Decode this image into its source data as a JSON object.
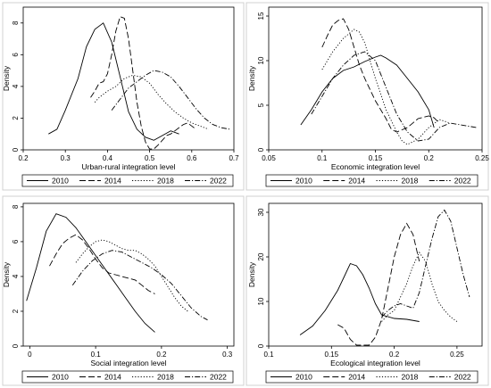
{
  "chart_data": [
    {
      "type": "line",
      "xlabel": "Urban-rural integration level",
      "ylabel": "Density",
      "xlim": [
        0.2,
        0.7
      ],
      "ylim": [
        0,
        9
      ],
      "xticks": [
        "0.2",
        "0.3",
        "0.4",
        "0.5",
        "0.6",
        "0.7"
      ],
      "yticks": [
        "0",
        "2",
        "4",
        "6",
        "8"
      ],
      "legend_position": "bottom",
      "series": [
        {
          "name": "2010",
          "style": "solid",
          "x": [
            0.26,
            0.28,
            0.3,
            0.33,
            0.35,
            0.37,
            0.39,
            0.41,
            0.43,
            0.45,
            0.47,
            0.49,
            0.51,
            0.53,
            0.55,
            0.57
          ],
          "y": [
            1.0,
            1.3,
            2.5,
            4.5,
            6.5,
            7.6,
            8.0,
            6.8,
            4.6,
            2.4,
            1.3,
            0.8,
            0.6,
            0.9,
            1.2,
            1.0
          ]
        },
        {
          "name": "2014",
          "style": "dash",
          "x": [
            0.36,
            0.37,
            0.38,
            0.39,
            0.4,
            0.41,
            0.42,
            0.43,
            0.44,
            0.45,
            0.46,
            0.47,
            0.48,
            0.49,
            0.5,
            0.51,
            0.52,
            0.53,
            0.54,
            0.55,
            0.56,
            0.57,
            0.58,
            0.59,
            0.6,
            0.61
          ],
          "y": [
            3.3,
            3.7,
            4.2,
            4.3,
            4.8,
            6.0,
            7.5,
            8.4,
            8.3,
            7.0,
            5.0,
            3.0,
            1.5,
            0.5,
            0.05,
            0.05,
            0.3,
            0.6,
            0.9,
            1.0,
            1.2,
            1.4,
            1.6,
            1.7,
            1.5,
            1.3
          ]
        },
        {
          "name": "2018",
          "style": "dot",
          "x": [
            0.37,
            0.38,
            0.4,
            0.42,
            0.44,
            0.46,
            0.48,
            0.5,
            0.52,
            0.54,
            0.56,
            0.58,
            0.6,
            0.62,
            0.64
          ],
          "y": [
            3.0,
            3.3,
            3.7,
            4.0,
            4.5,
            4.7,
            4.6,
            4.2,
            3.5,
            2.9,
            2.4,
            2.0,
            1.7,
            1.5,
            1.3
          ]
        },
        {
          "name": "2022",
          "style": "dashdot",
          "x": [
            0.41,
            0.43,
            0.45,
            0.47,
            0.49,
            0.51,
            0.53,
            0.55,
            0.57,
            0.59,
            0.61,
            0.63,
            0.65,
            0.67,
            0.69
          ],
          "y": [
            2.5,
            3.2,
            3.9,
            4.3,
            4.7,
            5.0,
            4.9,
            4.6,
            4.0,
            3.3,
            2.6,
            2.0,
            1.6,
            1.4,
            1.3
          ]
        }
      ]
    },
    {
      "type": "line",
      "xlabel": "Economic integration level",
      "ylabel": "Density",
      "xlim": [
        0.05,
        0.25
      ],
      "ylim": [
        0,
        16
      ],
      "xticks": [
        "0.05",
        "0.1",
        "0.15",
        "0.2",
        "0.25"
      ],
      "yticks": [
        "0",
        "5",
        "10",
        "15"
      ],
      "legend_position": "bottom",
      "series": [
        {
          "name": "2010",
          "style": "solid",
          "x": [
            0.08,
            0.09,
            0.1,
            0.11,
            0.12,
            0.13,
            0.14,
            0.15,
            0.155,
            0.16,
            0.17,
            0.18,
            0.19,
            0.2,
            0.205
          ],
          "y": [
            2.8,
            4.5,
            6.5,
            8.0,
            8.9,
            9.3,
            9.9,
            10.4,
            10.6,
            10.3,
            9.5,
            8.0,
            6.5,
            4.5,
            2.5
          ]
        },
        {
          "name": "2014",
          "style": "dash",
          "x": [
            0.1,
            0.105,
            0.11,
            0.115,
            0.12,
            0.125,
            0.13,
            0.135,
            0.14,
            0.15,
            0.16,
            0.165,
            0.17,
            0.18,
            0.19,
            0.2,
            0.205,
            0.21
          ],
          "y": [
            11.5,
            12.8,
            14.0,
            14.5,
            14.7,
            13.5,
            11.5,
            9.5,
            8.0,
            5.5,
            3.5,
            2.3,
            2.0,
            2.5,
            3.5,
            3.8,
            3.6,
            3.0
          ]
        },
        {
          "name": "2018",
          "style": "dot",
          "x": [
            0.1,
            0.11,
            0.12,
            0.13,
            0.135,
            0.14,
            0.15,
            0.16,
            0.17,
            0.175,
            0.18,
            0.19,
            0.2,
            0.21,
            0.22
          ],
          "y": [
            9.0,
            11.0,
            12.5,
            13.5,
            13.2,
            12.0,
            8.0,
            4.5,
            2.0,
            1.0,
            0.6,
            1.2,
            2.5,
            3.4,
            3.0
          ]
        },
        {
          "name": "2022",
          "style": "dashdot",
          "x": [
            0.09,
            0.1,
            0.11,
            0.12,
            0.13,
            0.14,
            0.15,
            0.16,
            0.17,
            0.18,
            0.19,
            0.2,
            0.21,
            0.22,
            0.23,
            0.24,
            0.245
          ],
          "y": [
            4.0,
            6.0,
            8.0,
            9.5,
            10.6,
            11.0,
            10.0,
            7.0,
            4.0,
            2.0,
            1.0,
            1.2,
            2.5,
            3.0,
            2.8,
            2.6,
            2.5
          ]
        }
      ]
    },
    {
      "type": "line",
      "xlabel": "Social integration level",
      "ylabel": "Density",
      "xlim": [
        -0.01,
        0.31
      ],
      "ylim": [
        0,
        8.2
      ],
      "xticks": [
        "0",
        "0.1",
        "0.2",
        "0.3"
      ],
      "yticks": [
        "0",
        "2",
        "4",
        "6",
        "8"
      ],
      "legend_position": "bottom",
      "series": [
        {
          "name": "2010",
          "style": "solid",
          "x": [
            -0.005,
            0.01,
            0.025,
            0.04,
            0.055,
            0.07,
            0.085,
            0.1,
            0.115,
            0.13,
            0.145,
            0.16,
            0.175,
            0.19
          ],
          "y": [
            2.6,
            4.5,
            6.6,
            7.6,
            7.4,
            6.8,
            6.0,
            5.2,
            4.4,
            3.6,
            2.8,
            2.0,
            1.3,
            0.8
          ]
        },
        {
          "name": "2014",
          "style": "dash",
          "x": [
            0.03,
            0.04,
            0.05,
            0.06,
            0.07,
            0.08,
            0.09,
            0.1,
            0.11,
            0.12,
            0.13,
            0.14,
            0.15,
            0.16,
            0.17,
            0.18,
            0.19
          ],
          "y": [
            4.6,
            5.3,
            5.9,
            6.2,
            6.4,
            6.1,
            5.6,
            5.0,
            4.5,
            4.2,
            4.1,
            4.0,
            3.9,
            3.8,
            3.5,
            3.2,
            3.0
          ]
        },
        {
          "name": "2018",
          "style": "dot",
          "x": [
            0.07,
            0.08,
            0.09,
            0.1,
            0.11,
            0.12,
            0.13,
            0.14,
            0.15,
            0.16,
            0.17,
            0.18,
            0.19,
            0.2,
            0.21,
            0.22,
            0.23,
            0.24
          ],
          "y": [
            4.8,
            5.3,
            5.7,
            6.0,
            6.1,
            6.0,
            5.8,
            5.6,
            5.5,
            5.5,
            5.3,
            5.0,
            4.6,
            4.0,
            3.4,
            2.8,
            2.3,
            2.0
          ]
        },
        {
          "name": "2022",
          "style": "dashdot",
          "x": [
            0.065,
            0.08,
            0.095,
            0.11,
            0.125,
            0.14,
            0.155,
            0.17,
            0.185,
            0.2,
            0.215,
            0.23,
            0.245,
            0.26,
            0.27
          ],
          "y": [
            3.5,
            4.3,
            4.9,
            5.3,
            5.5,
            5.4,
            5.1,
            4.8,
            4.5,
            4.1,
            3.6,
            2.9,
            2.2,
            1.7,
            1.5
          ]
        }
      ]
    },
    {
      "type": "line",
      "xlabel": "Ecological integration level",
      "ylabel": "Density",
      "xlim": [
        0.1,
        0.27
      ],
      "ylim": [
        0,
        32
      ],
      "xticks": [
        "0.1",
        "0.15",
        "0.2",
        "0.25"
      ],
      "yticks": [
        "0",
        "10",
        "20",
        "30"
      ],
      "legend_position": "bottom",
      "series": [
        {
          "name": "2010",
          "style": "solid",
          "x": [
            0.125,
            0.135,
            0.145,
            0.155,
            0.16,
            0.165,
            0.17,
            0.175,
            0.18,
            0.185,
            0.19,
            0.2,
            0.21,
            0.22
          ],
          "y": [
            2.5,
            4.5,
            8.0,
            12.5,
            15.5,
            18.5,
            18.0,
            16.0,
            13.0,
            9.5,
            7.0,
            6.2,
            6.0,
            5.5
          ]
        },
        {
          "name": "2014",
          "style": "dash",
          "x": [
            0.155,
            0.16,
            0.165,
            0.17,
            0.175,
            0.18,
            0.185,
            0.19,
            0.195,
            0.2,
            0.205,
            0.21,
            0.215,
            0.22
          ],
          "y": [
            4.8,
            4.0,
            1.5,
            0.2,
            0.2,
            0.2,
            2.0,
            6.0,
            13.0,
            20.0,
            25.0,
            27.5,
            25.0,
            19.0
          ]
        },
        {
          "name": "2018",
          "style": "dot",
          "x": [
            0.19,
            0.195,
            0.2,
            0.205,
            0.21,
            0.215,
            0.22,
            0.225,
            0.23,
            0.235,
            0.24,
            0.245,
            0.25
          ],
          "y": [
            5.5,
            7.0,
            8.0,
            11.0,
            14.0,
            18.0,
            21.0,
            19.0,
            14.0,
            10.0,
            8.0,
            6.5,
            5.5
          ]
        },
        {
          "name": "2022",
          "style": "dashdot",
          "x": [
            0.19,
            0.195,
            0.2,
            0.205,
            0.21,
            0.215,
            0.22,
            0.225,
            0.23,
            0.235,
            0.24,
            0.245,
            0.25,
            0.255,
            0.26
          ],
          "y": [
            6.5,
            8.0,
            9.0,
            9.5,
            9.0,
            8.5,
            12.0,
            18.0,
            24.0,
            29.0,
            30.5,
            28.0,
            22.0,
            16.0,
            11.0
          ]
        }
      ]
    }
  ]
}
